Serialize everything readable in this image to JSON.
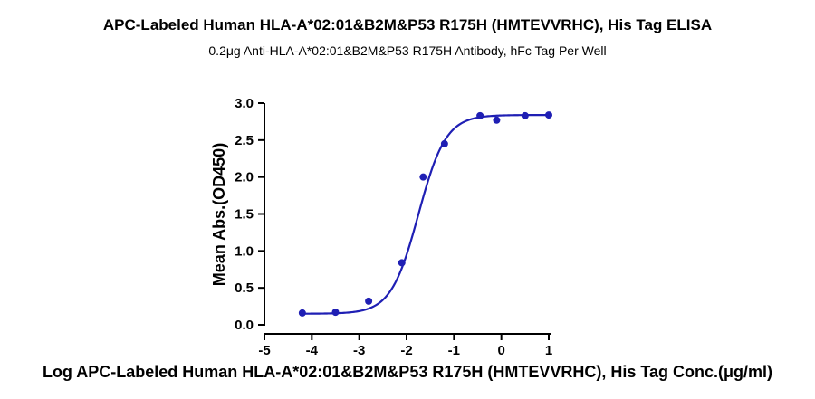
{
  "chart_data": {
    "type": "scatter",
    "title": "APC-Labeled Human HLA-A*02:01&B2M&P53 R175H (HMTEVVRHC), His Tag ELISA",
    "subtitle": "0.2μg Anti-HLA-A*02:01&B2M&P53 R175H Antibody, hFc Tag Per Well",
    "xlabel": "Log APC-Labeled Human HLA-A*02:01&B2M&P53 R175H (HMTEVVRHC), His Tag Conc.(μg/ml)",
    "ylabel": "Mean Abs.(OD450)",
    "xlim": [
      -5,
      1
    ],
    "ylim": [
      0,
      3.0
    ],
    "x_ticks": [
      "-5",
      "-4",
      "-3",
      "-2",
      "-1",
      "0",
      "1"
    ],
    "y_ticks": [
      "0.0",
      "0.5",
      "1.0",
      "1.5",
      "2.0",
      "2.5",
      "3.0"
    ],
    "grid": false,
    "color": "#1f1fb4",
    "series": [
      {
        "x": [
          -4.2,
          -3.5,
          -2.8,
          -2.1,
          -1.65,
          -1.2,
          -0.45,
          -0.1,
          0.5,
          1.0
        ],
        "y": [
          0.16,
          0.17,
          0.32,
          0.84,
          2.0,
          2.45,
          2.83,
          2.77,
          2.83,
          2.84
        ],
        "fit": {
          "model": "4PL",
          "bottom": 0.15,
          "top": 2.84,
          "logEC50": -1.75,
          "hill": 1.5
        }
      }
    ]
  }
}
